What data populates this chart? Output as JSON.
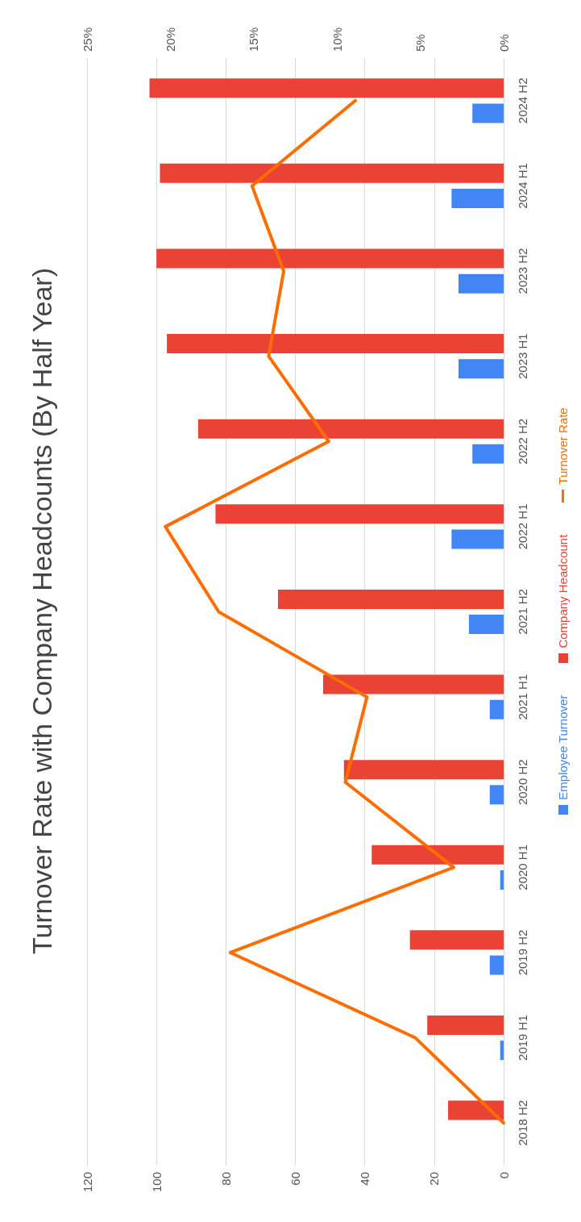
{
  "chart_data": {
    "type": "bar",
    "orientation": "horizontal",
    "title": "Turnover Rate with Company Headcounts (By Half Year)",
    "categories": [
      "2024 H2",
      "2024 H1",
      "2023 H2",
      "2023 H1",
      "2022 H2",
      "2022 H1",
      "2021 H2",
      "2021 H1",
      "2020 H2",
      "2020 H1",
      "2019 H2",
      "2019 H1",
      "2018 H2"
    ],
    "series": [
      {
        "name": "Employee Turnover",
        "color": "#4285f4",
        "values": [
          9,
          15,
          13,
          13,
          9,
          15,
          10,
          4,
          4,
          1,
          4,
          1,
          0
        ]
      },
      {
        "name": "Company Headcount",
        "color": "#ea4335",
        "values": [
          102,
          99,
          100,
          97,
          88,
          83,
          65,
          52,
          46,
          38,
          27,
          22,
          16
        ]
      },
      {
        "name": "Turnover Rate",
        "type": "line",
        "axis": "x2",
        "color": "#ff6d00",
        "values": [
          8.9,
          15.1,
          13.2,
          14.1,
          10.5,
          20.3,
          17.1,
          8.2,
          9.5,
          3.0,
          16.4,
          5.3,
          0
        ]
      }
    ],
    "xlim": [
      120,
      0
    ],
    "xticks": [
      120,
      100,
      80,
      60,
      40,
      20,
      0
    ],
    "x2lim": [
      25,
      0
    ],
    "x2ticks": [
      {
        "value": 25,
        "label": "25%"
      },
      {
        "value": 20,
        "label": "20%"
      },
      {
        "value": 15,
        "label": "15%"
      },
      {
        "value": 10,
        "label": "10%"
      },
      {
        "value": 5,
        "label": "5%"
      },
      {
        "value": 0,
        "label": "0%"
      }
    ],
    "grid": "x",
    "legend": "right",
    "marker": "none",
    "line_style": "solid"
  }
}
